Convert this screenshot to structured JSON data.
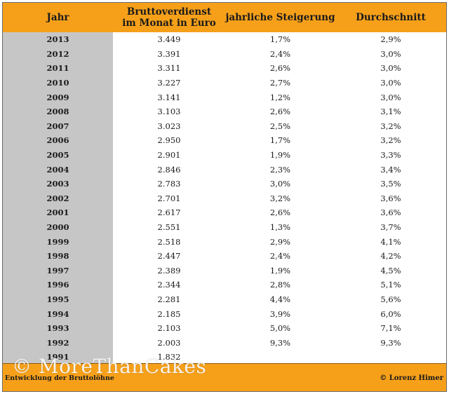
{
  "table": {
    "headers": {
      "year": "Jahr",
      "gross_line1": "Bruttoverdienst",
      "gross_line2": "im Monat in Euro",
      "rise": "jahrliche Steigerung",
      "avg": "Durchschnitt"
    },
    "rows": [
      {
        "year": "2013",
        "gross": "3.449",
        "rise": "1,7%",
        "avg": "2,9%"
      },
      {
        "year": "2012",
        "gross": "3.391",
        "rise": "2,4%",
        "avg": "3,0%"
      },
      {
        "year": "2011",
        "gross": "3.311",
        "rise": "2,6%",
        "avg": "3,0%"
      },
      {
        "year": "2010",
        "gross": "3.227",
        "rise": "2,7%",
        "avg": "3,0%"
      },
      {
        "year": "2009",
        "gross": "3.141",
        "rise": "1,2%",
        "avg": "3,0%"
      },
      {
        "year": "2008",
        "gross": "3.103",
        "rise": "2,6%",
        "avg": "3,1%"
      },
      {
        "year": "2007",
        "gross": "3.023",
        "rise": "2,5%",
        "avg": "3,2%"
      },
      {
        "year": "2006",
        "gross": "2.950",
        "rise": "1,7%",
        "avg": "3,2%"
      },
      {
        "year": "2005",
        "gross": "2.901",
        "rise": "1,9%",
        "avg": "3,3%"
      },
      {
        "year": "2004",
        "gross": "2.846",
        "rise": "2,3%",
        "avg": "3,4%"
      },
      {
        "year": "2003",
        "gross": "2.783",
        "rise": "3,0%",
        "avg": "3,5%"
      },
      {
        "year": "2002",
        "gross": "2.701",
        "rise": "3,2%",
        "avg": "3,6%"
      },
      {
        "year": "2001",
        "gross": "2.617",
        "rise": "2,6%",
        "avg": "3,6%"
      },
      {
        "year": "2000",
        "gross": "2.551",
        "rise": "1,3%",
        "avg": "3,7%"
      },
      {
        "year": "1999",
        "gross": "2.518",
        "rise": "2,9%",
        "avg": "4,1%"
      },
      {
        "year": "1998",
        "gross": "2.447",
        "rise": "2,4%",
        "avg": "4,2%"
      },
      {
        "year": "1997",
        "gross": "2.389",
        "rise": "1,9%",
        "avg": "4,5%"
      },
      {
        "year": "1996",
        "gross": "2.344",
        "rise": "2,8%",
        "avg": "5,1%"
      },
      {
        "year": "1995",
        "gross": "2.281",
        "rise": "4,4%",
        "avg": "5,6%"
      },
      {
        "year": "1994",
        "gross": "2.185",
        "rise": "3,9%",
        "avg": "6,0%"
      },
      {
        "year": "1993",
        "gross": "2.103",
        "rise": "5,0%",
        "avg": "7,1%"
      },
      {
        "year": "1992",
        "gross": "2.003",
        "rise": "9,3%",
        "avg": "9,3%"
      },
      {
        "year": "1991",
        "gross": "1.832",
        "rise": "",
        "avg": ""
      }
    ]
  },
  "footer": {
    "left": "Entwicklung der Bruttolöhne",
    "right": "© Lorenz Himer"
  },
  "watermark": "© MoreThanCakes",
  "colors": {
    "header_orange": "#f6a01a",
    "year_column_gray": "#c6c6c6"
  }
}
